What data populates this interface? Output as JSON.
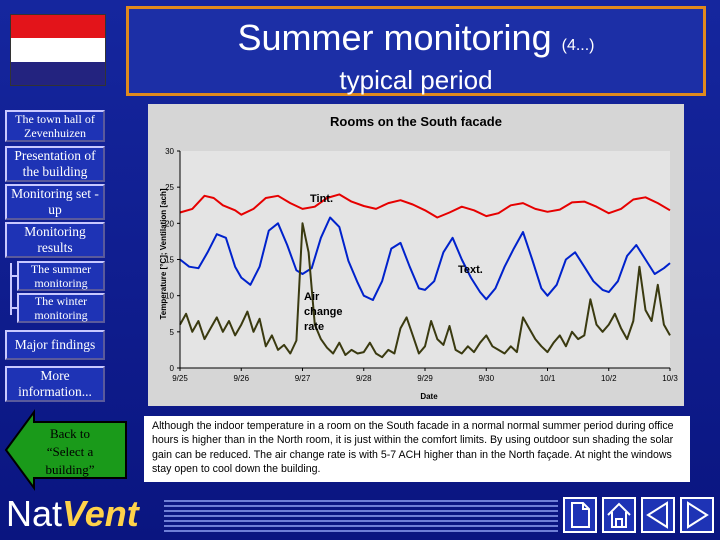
{
  "header": {
    "title": "Summer monitoring",
    "title_suffix": "(4...)",
    "subtitle": "typical period"
  },
  "nav": [
    {
      "id": "town-hall",
      "label": "The town hall of Zevenhuizen"
    },
    {
      "id": "presentation",
      "label": "Presentation of the building"
    },
    {
      "id": "setup",
      "label": "Monitoring set -up"
    },
    {
      "id": "results",
      "label": "Monitoring results"
    },
    {
      "id": "summer",
      "label": "The summer monitoring"
    },
    {
      "id": "winter",
      "label": "The winter monitoring"
    },
    {
      "id": "findings",
      "label": "Major findings"
    },
    {
      "id": "more",
      "label": "More information..."
    }
  ],
  "back_button": {
    "label": "Back to “Select a building”"
  },
  "logo": {
    "part1": "Nat",
    "part2": "Vent"
  },
  "caption": "Although the indoor temperature in a room on the South facade in a normal normal summer period during office hours is higher than in the North room, it is just within the comfort limits. By using outdoor sun shading the solar gain can be reduced. The air change rate is with 5-7 ACH higher than in the North façade. At night the windows stay open to cool down the building.",
  "toolbar": {
    "icons": [
      "page-icon",
      "home-icon",
      "previous-icon",
      "next-icon"
    ]
  },
  "colors": {
    "background": "#0d1c8c",
    "title_border": "#e08a1e",
    "tint": "#e60000",
    "text": "#0022cc",
    "ach": "#3a3a10"
  },
  "chart_data": {
    "type": "line",
    "title": "Rooms on the South facade",
    "xlabel": "Date",
    "ylabel": "Temperature [°C]; Ventilation [ach]",
    "ylim": [
      0,
      30
    ],
    "yticks": [
      0,
      5,
      10,
      15,
      20,
      25,
      30
    ],
    "xlim": [
      0,
      8
    ],
    "x_tick_labels": [
      "9/25",
      "9/26",
      "9/27",
      "9/28",
      "9/29",
      "9/30",
      "10/1",
      "10/2",
      "10/3"
    ],
    "annotations": [
      "Tint.",
      "Text.",
      "Air change rate"
    ],
    "series": [
      {
        "name": "Tint.",
        "color": "#e60000",
        "x": [
          0,
          0.2,
          0.4,
          0.55,
          0.7,
          0.9,
          1.0,
          1.2,
          1.4,
          1.6,
          1.8,
          2.0,
          2.2,
          2.4,
          2.6,
          2.8,
          3.0,
          3.2,
          3.4,
          3.6,
          3.8,
          4.0,
          4.2,
          4.4,
          4.6,
          4.8,
          5.0,
          5.2,
          5.4,
          5.6,
          5.8,
          6.0,
          6.2,
          6.4,
          6.6,
          6.8,
          7.0,
          7.2,
          7.4,
          7.6,
          7.8,
          8.0
        ],
        "values": [
          21.5,
          22.0,
          23.8,
          23.5,
          22.5,
          21.8,
          21.2,
          22.0,
          23.5,
          23.8,
          22.8,
          22.0,
          22.3,
          23.5,
          24.0,
          23.0,
          22.4,
          22.0,
          22.8,
          23.2,
          22.6,
          21.8,
          20.8,
          21.5,
          22.3,
          21.8,
          21.0,
          21.4,
          22.5,
          22.8,
          22.0,
          21.6,
          21.9,
          22.9,
          23.0,
          22.3,
          21.4,
          22.0,
          23.3,
          23.6,
          22.8,
          21.8
        ]
      },
      {
        "name": "Text.",
        "color": "#0022cc",
        "x": [
          0,
          0.15,
          0.3,
          0.45,
          0.6,
          0.75,
          0.9,
          1.0,
          1.15,
          1.3,
          1.45,
          1.6,
          1.75,
          1.9,
          2.0,
          2.15,
          2.3,
          2.45,
          2.6,
          2.75,
          2.9,
          3.0,
          3.15,
          3.3,
          3.45,
          3.6,
          3.75,
          3.9,
          4.0,
          4.15,
          4.3,
          4.45,
          4.6,
          4.75,
          4.9,
          5.0,
          5.15,
          5.3,
          5.45,
          5.6,
          5.75,
          5.9,
          6.0,
          6.15,
          6.3,
          6.45,
          6.6,
          6.75,
          6.9,
          7.0,
          7.15,
          7.3,
          7.45,
          7.6,
          7.75,
          7.9,
          8.0
        ],
        "values": [
          15.0,
          14.0,
          13.8,
          16.0,
          18.5,
          18.0,
          14.0,
          12.5,
          11.5,
          14.0,
          19.0,
          20.0,
          17.0,
          13.5,
          13.0,
          13.8,
          18.0,
          20.8,
          19.5,
          14.8,
          11.8,
          10.0,
          9.4,
          12.0,
          16.5,
          17.3,
          14.0,
          11.0,
          10.8,
          12.0,
          16.0,
          18.0,
          15.0,
          12.5,
          10.5,
          9.5,
          11.0,
          14.0,
          16.5,
          18.8,
          15.0,
          11.0,
          10.0,
          11.5,
          15.0,
          16.0,
          14.0,
          12.0,
          10.8,
          10.5,
          12.0,
          15.5,
          17.0,
          15.0,
          13.0,
          13.8,
          14.5
        ]
      },
      {
        "name": "Air change rate",
        "color": "#3a3a10",
        "x": [
          0,
          0.1,
          0.2,
          0.3,
          0.4,
          0.5,
          0.6,
          0.7,
          0.8,
          0.9,
          1.0,
          1.1,
          1.2,
          1.3,
          1.4,
          1.5,
          1.6,
          1.7,
          1.8,
          1.9,
          2.0,
          2.1,
          2.2,
          2.3,
          2.4,
          2.5,
          2.6,
          2.7,
          2.8,
          2.9,
          3.0,
          3.1,
          3.2,
          3.3,
          3.4,
          3.5,
          3.6,
          3.7,
          3.8,
          3.9,
          4.0,
          4.1,
          4.2,
          4.3,
          4.4,
          4.5,
          4.6,
          4.7,
          4.8,
          4.9,
          5.0,
          5.1,
          5.2,
          5.3,
          5.4,
          5.5,
          5.6,
          5.7,
          5.8,
          5.9,
          6.0,
          6.1,
          6.2,
          6.3,
          6.4,
          6.5,
          6.6,
          6.7,
          6.8,
          6.9,
          7.0,
          7.1,
          7.2,
          7.3,
          7.4,
          7.5,
          7.6,
          7.7,
          7.8,
          7.9,
          8.0
        ],
        "values": [
          6.0,
          7.5,
          5.0,
          6.5,
          4.0,
          5.5,
          7.0,
          5.0,
          6.5,
          4.5,
          6.0,
          7.8,
          5.0,
          6.8,
          3.0,
          4.5,
          2.5,
          3.2,
          2.0,
          3.8,
          20.0,
          16.0,
          6.0,
          4.0,
          2.8,
          2.0,
          3.5,
          1.8,
          2.5,
          2.0,
          2.2,
          3.5,
          2.0,
          1.5,
          2.5,
          2.0,
          5.5,
          7.0,
          4.5,
          2.0,
          3.0,
          6.5,
          4.0,
          3.2,
          5.8,
          2.5,
          2.0,
          3.0,
          2.2,
          3.5,
          4.5,
          3.0,
          2.5,
          2.0,
          3.0,
          2.2,
          7.0,
          5.5,
          4.0,
          3.0,
          2.2,
          3.5,
          4.5,
          3.0,
          5.0,
          4.0,
          4.5,
          9.5,
          6.0,
          5.0,
          6.0,
          7.5,
          5.5,
          4.0,
          6.5,
          14.0,
          8.0,
          6.5,
          11.5,
          6.0,
          4.5
        ]
      }
    ]
  }
}
